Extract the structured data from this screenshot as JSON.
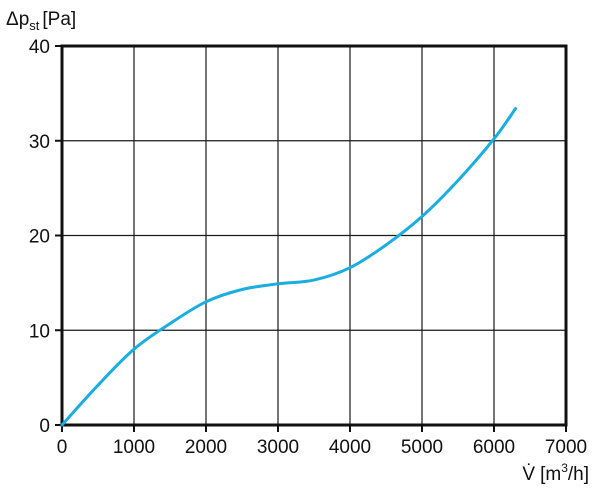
{
  "chart_data": {
    "type": "line",
    "title": "",
    "ylabel": {
      "prefix": "Δp",
      "subscript": "st",
      "unit": "[Pa]"
    },
    "xlabel": {
      "symbol": "V̇",
      "unit_start": "[m",
      "unit_sup": "3",
      "unit_end": "/h]"
    },
    "xlim": [
      0,
      7000
    ],
    "ylim": [
      0,
      40
    ],
    "x_ticks": [
      "0",
      "1000",
      "2000",
      "3000",
      "4000",
      "5000",
      "6000",
      "7000"
    ],
    "y_ticks": [
      "0",
      "10",
      "20",
      "30",
      "40"
    ],
    "grid": true,
    "legend": "none",
    "colors": {
      "series": "#1aaee0",
      "grid": "#1a1a1a",
      "axis": "#111111"
    },
    "series": [
      {
        "x": [
          0,
          500,
          1000,
          1500,
          2000,
          2500,
          3000,
          3500,
          4000,
          4500,
          5000,
          5500,
          6000,
          6300
        ],
        "y": [
          0,
          4.2,
          8.0,
          10.7,
          13.0,
          14.3,
          14.9,
          15.3,
          16.6,
          19.0,
          22.0,
          25.8,
          30.2,
          33.4
        ]
      }
    ]
  }
}
